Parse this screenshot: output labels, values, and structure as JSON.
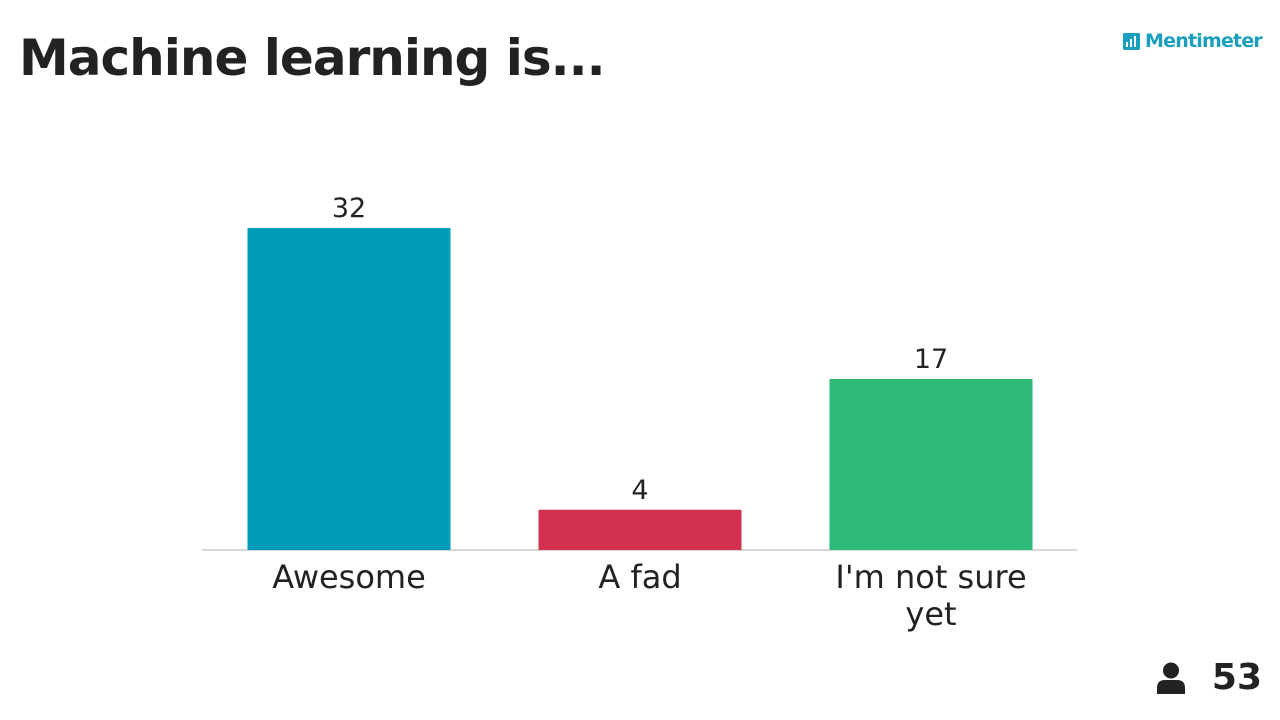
{
  "slide": {
    "title": "Machine learning is...",
    "brand": "Mentimeter",
    "participant_count": "53"
  },
  "colors": {
    "brand": "#1a9fbf",
    "text": "#222222",
    "axis": "#cccccc"
  },
  "icons": {
    "brand": "mentimeter-logo-icon",
    "participants": "person-icon"
  },
  "chart_data": {
    "type": "bar",
    "title": "Machine learning is...",
    "categories": [
      "Awesome",
      "A fad",
      "I'm not sure yet"
    ],
    "category_label_lines": [
      [
        "Awesome"
      ],
      [
        "A fad"
      ],
      [
        "I'm not sure",
        "yet"
      ]
    ],
    "values": [
      32,
      4,
      17
    ],
    "bar_colors": [
      "#009cba",
      "#d1314f",
      "#2db976"
    ],
    "xlabel": "",
    "ylabel": "",
    "ylim": [
      0,
      32
    ],
    "grid": false,
    "data_labels": true
  }
}
